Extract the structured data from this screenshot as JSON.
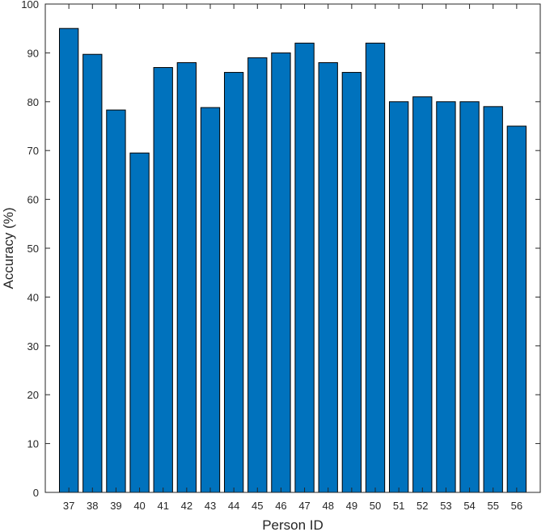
{
  "chart_data": {
    "type": "bar",
    "title": "",
    "xlabel": "Person ID",
    "ylabel": "Accuracy (%)",
    "ylim": [
      0,
      100
    ],
    "yticks": [
      0,
      10,
      20,
      30,
      40,
      50,
      60,
      70,
      80,
      90,
      100
    ],
    "grid": false,
    "categories": [
      "37",
      "38",
      "39",
      "40",
      "41",
      "42",
      "43",
      "44",
      "45",
      "46",
      "47",
      "48",
      "49",
      "50",
      "51",
      "52",
      "53",
      "54",
      "55",
      "56"
    ],
    "series": [
      {
        "values": [
          95,
          89.7,
          78.3,
          69.5,
          87,
          88,
          78.8,
          86,
          89,
          90,
          92,
          88,
          86,
          92,
          80,
          81,
          80,
          80,
          79,
          75
        ]
      }
    ],
    "colors": {
      "bar_fill": "#0072BD",
      "bar_edge": "#000000",
      "axis": "#262626"
    }
  }
}
